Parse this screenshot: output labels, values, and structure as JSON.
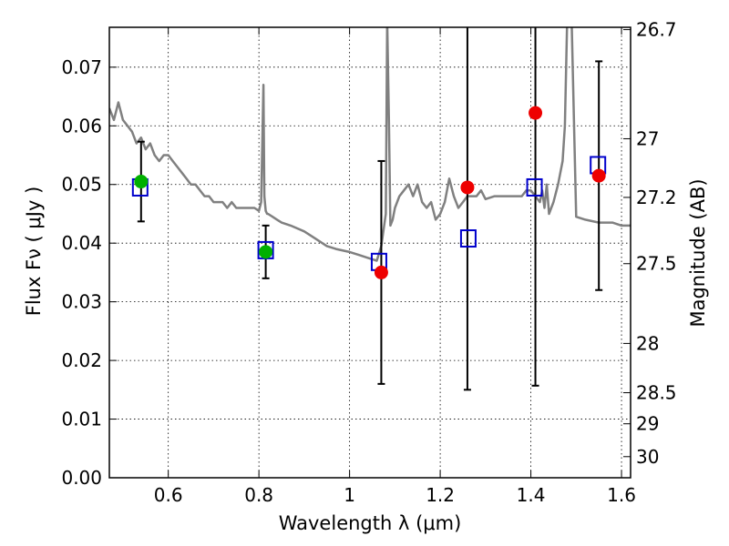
{
  "chart_data": {
    "type": "scatter",
    "xlabel": "Wavelength  λ (μm)",
    "ylabel": "Flux  Fν  ( μJy )",
    "ylabel_right": "Magnitude (AB)",
    "xlim": [
      0.47,
      1.62
    ],
    "ylim": [
      0.0,
      0.0768
    ],
    "grid": true,
    "x_ticks": [
      0.6,
      0.8,
      1.0,
      1.2,
      1.4,
      1.6
    ],
    "x_tick_labels": [
      "0.6",
      "0.8",
      "1",
      "1.2",
      "1.4",
      "1.6"
    ],
    "y_ticks": [
      0.0,
      0.01,
      0.02,
      0.03,
      0.04,
      0.05,
      0.06,
      0.07
    ],
    "y_tick_labels": [
      "0.00",
      "0.01",
      "0.02",
      "0.03",
      "0.04",
      "0.05",
      "0.06",
      "0.07"
    ],
    "right_ticks": [
      {
        "flux": 0.0764,
        "label": "26.7"
      },
      {
        "flux": 0.0578,
        "label": "27"
      },
      {
        "flux": 0.0478,
        "label": "27.2"
      },
      {
        "flux": 0.0365,
        "label": "27.5"
      },
      {
        "flux": 0.0229,
        "label": "28"
      },
      {
        "flux": 0.0145,
        "label": "28.5"
      },
      {
        "flux": 0.0092,
        "label": "29"
      },
      {
        "flux": 0.0036,
        "label": "30"
      }
    ],
    "colors": {
      "sed_line": "#808080",
      "photometry_green": "#00b000",
      "photometry_red": "#ee0000",
      "model_box": "#0000cc",
      "errorbar": "#000000"
    },
    "series": [
      {
        "name": "SED model spectrum",
        "kind": "line",
        "x": [
          0.47,
          0.475,
          0.48,
          0.49,
          0.5,
          0.51,
          0.52,
          0.53,
          0.54,
          0.55,
          0.56,
          0.57,
          0.58,
          0.59,
          0.6,
          0.61,
          0.62,
          0.63,
          0.64,
          0.65,
          0.66,
          0.67,
          0.68,
          0.69,
          0.7,
          0.71,
          0.72,
          0.73,
          0.74,
          0.75,
          0.76,
          0.77,
          0.78,
          0.79,
          0.8,
          0.805,
          0.81,
          0.812,
          0.815,
          0.818,
          0.82,
          0.83,
          0.84,
          0.85,
          0.87,
          0.9,
          0.92,
          0.95,
          0.97,
          1.0,
          1.02,
          1.04,
          1.06,
          1.07,
          1.08,
          1.083,
          1.087,
          1.09,
          1.095,
          1.1,
          1.11,
          1.12,
          1.13,
          1.14,
          1.15,
          1.16,
          1.17,
          1.18,
          1.19,
          1.2,
          1.21,
          1.22,
          1.23,
          1.24,
          1.25,
          1.26,
          1.27,
          1.28,
          1.29,
          1.3,
          1.32,
          1.34,
          1.36,
          1.38,
          1.39,
          1.4,
          1.41,
          1.42,
          1.425,
          1.43,
          1.435,
          1.44,
          1.45,
          1.46,
          1.47,
          1.475,
          1.48,
          1.49,
          1.5,
          1.52,
          1.55,
          1.58,
          1.6,
          1.62
        ],
        "y": [
          0.063,
          0.062,
          0.061,
          0.064,
          0.061,
          0.06,
          0.059,
          0.057,
          0.058,
          0.056,
          0.057,
          0.055,
          0.054,
          0.055,
          0.055,
          0.054,
          0.053,
          0.052,
          0.051,
          0.05,
          0.05,
          0.049,
          0.048,
          0.048,
          0.047,
          0.047,
          0.047,
          0.046,
          0.047,
          0.046,
          0.046,
          0.046,
          0.046,
          0.046,
          0.0455,
          0.047,
          0.067,
          0.048,
          0.0455,
          0.045,
          0.045,
          0.0445,
          0.044,
          0.0435,
          0.043,
          0.042,
          0.041,
          0.0395,
          0.039,
          0.0385,
          0.038,
          0.0375,
          0.037,
          0.0395,
          0.045,
          0.078,
          0.06,
          0.043,
          0.044,
          0.046,
          0.048,
          0.049,
          0.05,
          0.048,
          0.05,
          0.047,
          0.046,
          0.047,
          0.044,
          0.045,
          0.047,
          0.051,
          0.048,
          0.046,
          0.047,
          0.048,
          0.048,
          0.048,
          0.049,
          0.0475,
          0.048,
          0.048,
          0.048,
          0.048,
          0.049,
          0.049,
          0.048,
          0.047,
          0.049,
          0.046,
          0.05,
          0.045,
          0.047,
          0.05,
          0.054,
          0.06,
          0.078,
          0.078,
          0.0445,
          0.044,
          0.0435,
          0.0435,
          0.043,
          0.043
        ]
      },
      {
        "name": "Observed photometry (green)",
        "kind": "points",
        "x": [
          0.54,
          0.815
        ],
        "y": [
          0.0505,
          0.0385
        ],
        "err": [
          0.0068,
          0.0045
        ]
      },
      {
        "name": "Observed photometry (red)",
        "kind": "points",
        "x": [
          1.07,
          1.26,
          1.41,
          1.55
        ],
        "y": [
          0.035,
          0.0495,
          0.0622,
          0.0515
        ],
        "err": [
          0.019,
          0.0345,
          0.0465,
          0.0195
        ]
      },
      {
        "name": "Model synthetic photometry",
        "kind": "boxes",
        "x": [
          0.538,
          0.815,
          1.065,
          1.262,
          1.408,
          1.548
        ],
        "y": [
          0.0495,
          0.0388,
          0.0368,
          0.0408,
          0.0495,
          0.0533
        ]
      }
    ]
  }
}
